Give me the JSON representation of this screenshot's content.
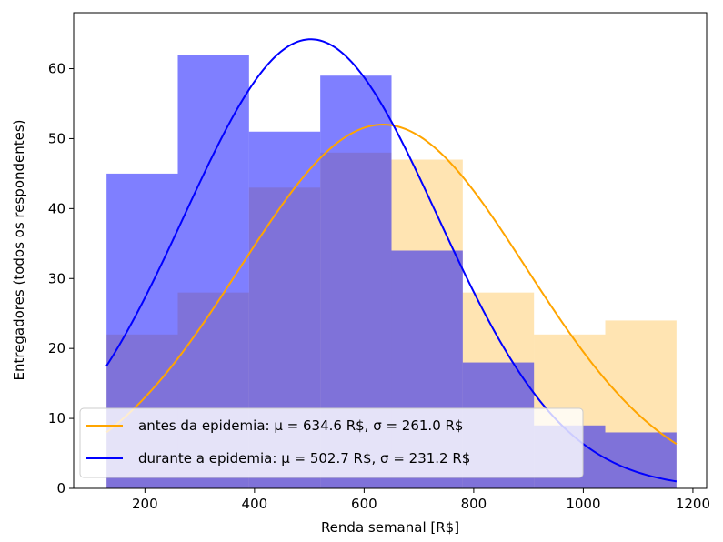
{
  "chart_data": {
    "type": "bar",
    "xlabel": "Renda semanal [R$]",
    "ylabel": "Entregadores (todos os respondentes)",
    "xlim": [
      70,
      1225
    ],
    "ylim": [
      0,
      68
    ],
    "xticks": [
      200,
      400,
      600,
      800,
      1000,
      1200
    ],
    "yticks": [
      0,
      10,
      20,
      30,
      40,
      50,
      60
    ],
    "bin_edges": [
      130,
      260,
      390,
      520,
      650,
      780,
      910,
      1040,
      1170
    ],
    "series": [
      {
        "name": "antes da epidemia",
        "kind": "histogram",
        "values": [
          22,
          28,
          43,
          48,
          47,
          28,
          22,
          24
        ],
        "color": "#ffa500",
        "alpha": 0.3
      },
      {
        "name": "durante a epidemia",
        "kind": "histogram",
        "values": [
          45,
          62,
          51,
          59,
          34,
          18,
          9,
          8
        ],
        "color": "#0000ff",
        "alpha": 0.5
      }
    ],
    "fits": [
      {
        "legend": "antes da epidemia: μ = 634.6 R$, σ = 261.0 R$",
        "mu": 634.6,
        "sigma": 261.0,
        "peak": 52,
        "color": "#ffa500"
      },
      {
        "legend": "durante a epidemia: μ = 502.7 R$, σ = 231.2 R$",
        "mu": 502.7,
        "sigma": 231.2,
        "peak": 64.2,
        "color": "#0000ff"
      }
    ],
    "legend_position": "lower-left",
    "grid": false
  }
}
